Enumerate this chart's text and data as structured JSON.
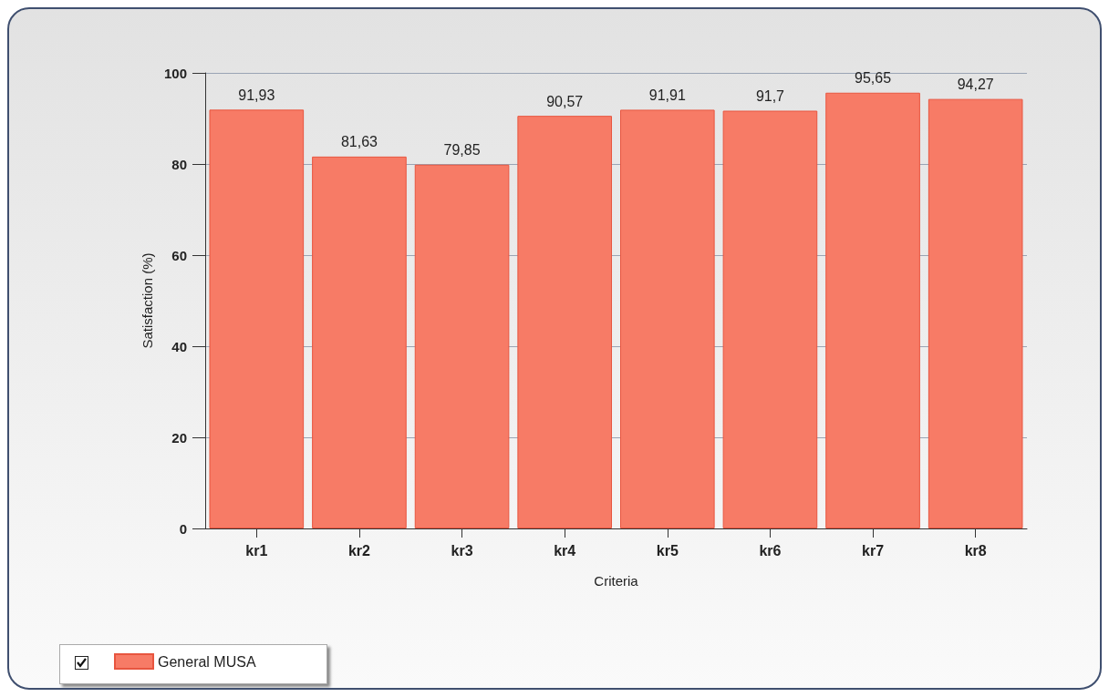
{
  "chart_data": {
    "type": "bar",
    "xlabel": "Criteria",
    "ylabel": "Satisfaction (%)",
    "categories": [
      "kr1",
      "kr2",
      "kr3",
      "kr4",
      "kr5",
      "kr6",
      "kr7",
      "kr8"
    ],
    "series": [
      {
        "name": "General MUSA",
        "color": "#f77b66",
        "values": [
          91.93,
          81.63,
          79.85,
          90.57,
          91.91,
          91.7,
          95.65,
          94.27
        ],
        "value_labels": [
          "91,93",
          "81,63",
          "79,85",
          "90,57",
          "91,91",
          "91,7",
          "95,65",
          "94,27"
        ]
      }
    ],
    "ylim": [
      0,
      100
    ],
    "yticks": [
      0,
      20,
      40,
      60,
      80,
      100
    ],
    "grid": "y",
    "legend": "bottom left"
  }
}
